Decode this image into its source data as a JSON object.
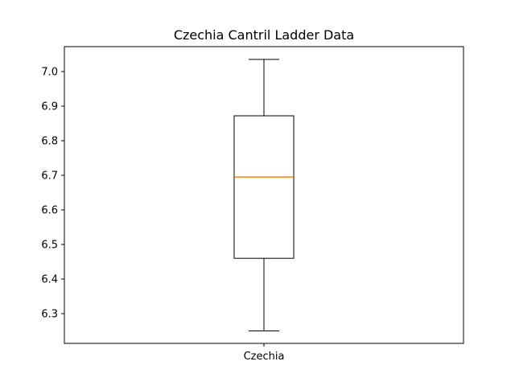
{
  "chart_data": {
    "type": "box",
    "title": "Czechia Cantril Ladder Data",
    "xlabel": "",
    "ylabel": "",
    "categories": [
      "Czechia"
    ],
    "series": [
      {
        "category": "Czechia",
        "whisker_low": 6.25,
        "q1": 6.46,
        "median": 6.695,
        "q3": 6.872,
        "whisker_high": 7.035
      }
    ],
    "ylim": [
      6.214,
      7.072
    ],
    "y_ticks": [
      "6.3",
      "6.4",
      "6.5",
      "6.6",
      "6.7",
      "6.8",
      "6.9",
      "7.0"
    ],
    "grid": false,
    "colors": {
      "box": "#000000",
      "median": "#ff7f0e",
      "axes": "#000000"
    }
  }
}
